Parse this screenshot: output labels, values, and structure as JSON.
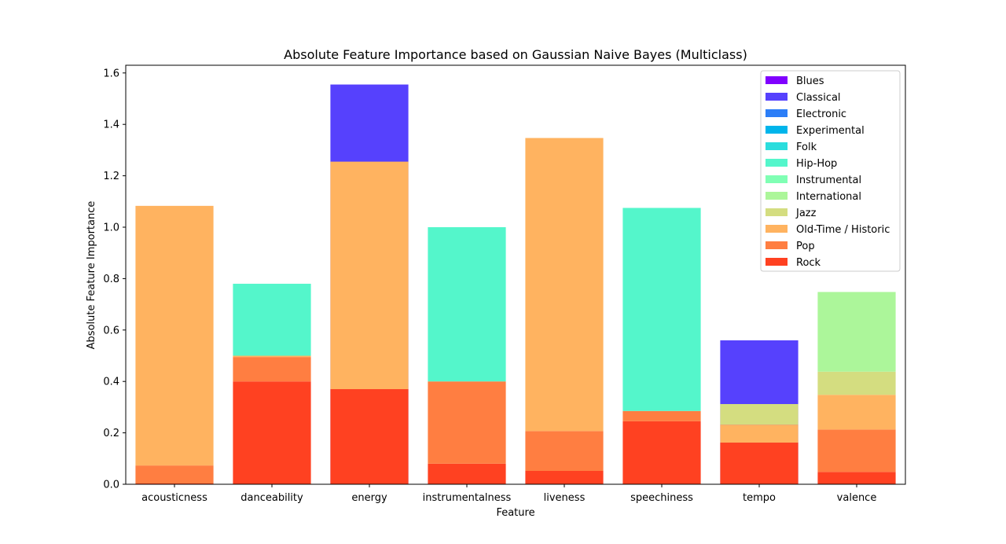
{
  "chart_data": {
    "type": "bar",
    "stacked": true,
    "title": "Absolute Feature Importance based on Gaussian Naive Bayes (Multiclass)",
    "xlabel": "Feature",
    "ylabel": "Absolute Feature Importance",
    "ylim": [
      0,
      1.63
    ],
    "yticks": [
      "0.0",
      "0.2",
      "0.4",
      "0.6",
      "0.8",
      "1.0",
      "1.2",
      "1.4",
      "1.6"
    ],
    "grid": false,
    "legend_position": "top-right",
    "categories": [
      "acousticness",
      "danceability",
      "energy",
      "instrumentalness",
      "liveness",
      "speechiness",
      "tempo",
      "valence"
    ],
    "series": [
      {
        "name": "Blues",
        "color": "#8000ff",
        "values": [
          0,
          0,
          0,
          0,
          0,
          0,
          0,
          0
        ]
      },
      {
        "name": "Classical",
        "color": "#5641fd",
        "values": [
          0,
          0,
          0,
          0,
          0,
          0,
          0,
          0
        ]
      },
      {
        "name": "Electronic",
        "color": "#2c7ef7",
        "values": [
          0,
          0,
          0,
          0,
          0,
          0,
          0,
          0
        ]
      },
      {
        "name": "Experimental",
        "color": "#00b5eb",
        "values": [
          0,
          0,
          0,
          0,
          0,
          0,
          0,
          0
        ]
      },
      {
        "name": "Folk",
        "color": "#2adddd",
        "values": [
          0,
          0,
          0,
          0,
          0,
          0,
          0,
          0
        ]
      },
      {
        "name": "Hip-Hop",
        "color": "#54f6cb",
        "values": [
          0,
          0.28,
          0,
          0.6,
          0,
          0.79,
          0,
          0
        ]
      },
      {
        "name": "Instrumental",
        "color": "#80ffb4",
        "values": [
          0,
          0,
          0,
          0,
          0,
          0,
          0,
          0
        ]
      },
      {
        "name": "International",
        "color": "#acf69a",
        "values": [
          0,
          0,
          0,
          0,
          0,
          0,
          0,
          0.31
        ]
      },
      {
        "name": "Jazz",
        "color": "#d4dd80",
        "values": [
          0,
          0,
          0,
          0,
          0,
          0,
          0.08,
          0.09
        ]
      },
      {
        "name": "Old-Time / Historic",
        "color": "#ffb360",
        "values": [
          1.01,
          0.005,
          0.885,
          0,
          1.14,
          0,
          0.07,
          0.135
        ]
      },
      {
        "name": "Pop",
        "color": "#ff7e41",
        "values": [
          0.07,
          0.095,
          0,
          0.32,
          0.155,
          0.04,
          0,
          0.165
        ]
      },
      {
        "name": "Rock",
        "color": "#ff4121",
        "values": [
          0.003,
          0.4,
          0.37,
          0.08,
          0.052,
          0.245,
          0.162,
          0.048
        ]
      }
    ],
    "draw_order": [
      "Rock",
      "Pop",
      "Old-Time / Historic",
      "Jazz",
      "International",
      "Instrumental",
      "Hip-Hop",
      "Folk",
      "Experimental",
      "Electronic",
      "Classical",
      "Blues"
    ],
    "classical_overlay": {
      "values": [
        0,
        0,
        1.555,
        0,
        0,
        0,
        0.56,
        0
      ]
    }
  }
}
